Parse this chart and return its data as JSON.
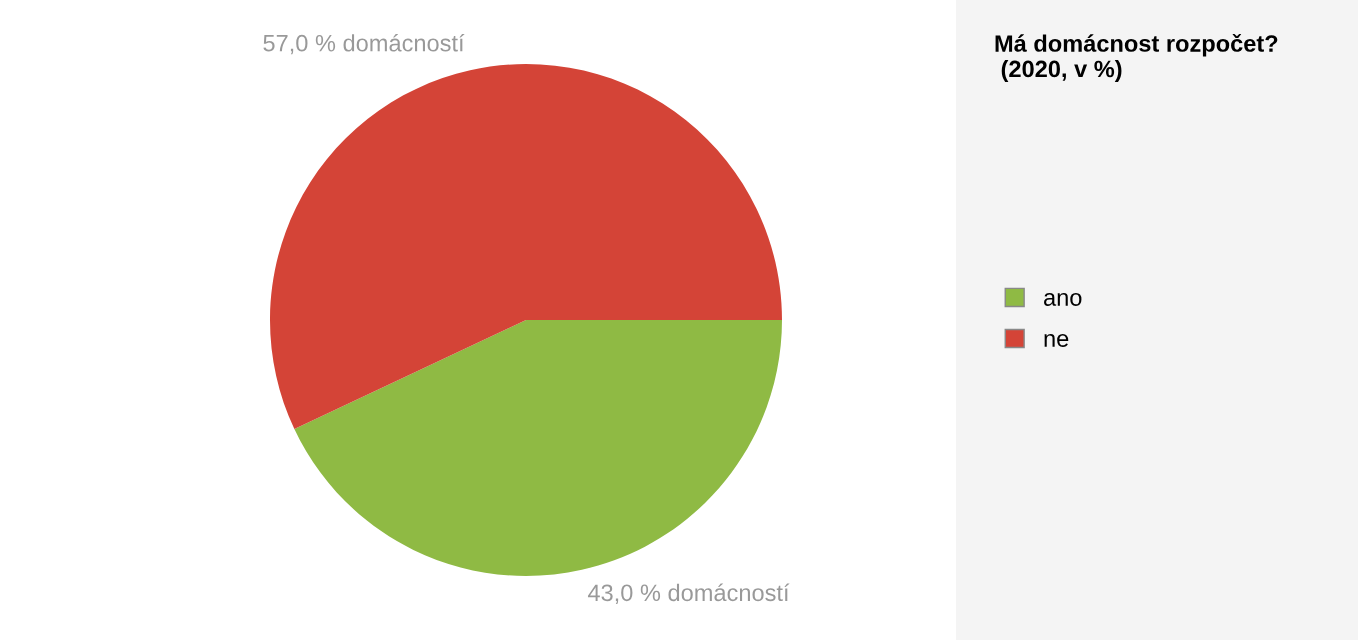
{
  "chart_data": {
    "type": "pie",
    "title": "Má domácnost rozpočet?\n (2020, v %)",
    "categories": [
      "ano",
      "ne"
    ],
    "values": [
      43.0,
      57.0
    ],
    "colors": [
      "#8fba44",
      "#d44437"
    ],
    "value_labels": [
      "43,0 % domácností",
      "57,0 % domácností"
    ],
    "legend": "right"
  }
}
